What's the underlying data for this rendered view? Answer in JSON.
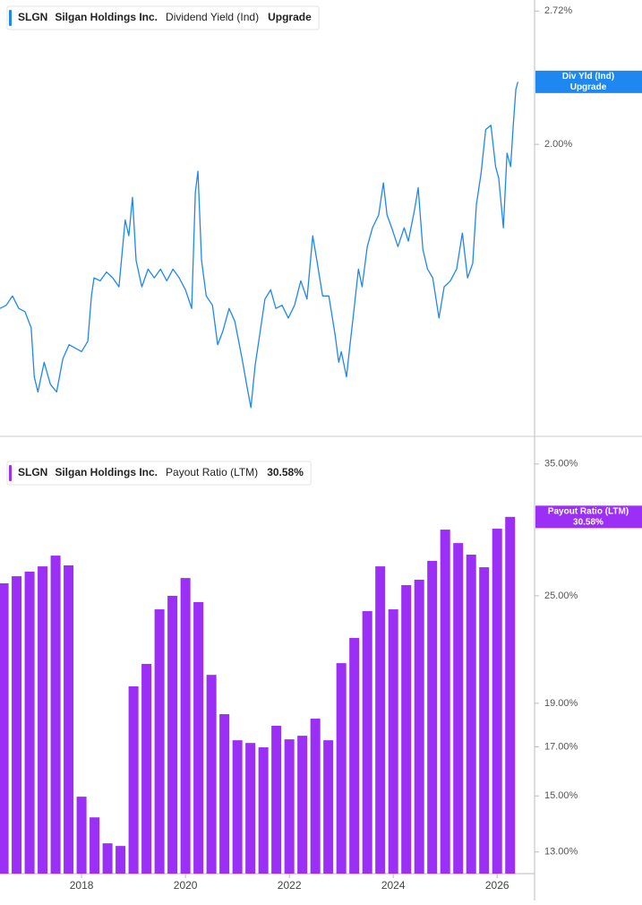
{
  "chart_data": [
    {
      "type": "line",
      "scale": "log",
      "ticker": "SLGN",
      "company": "Silgan Holdings Inc.",
      "x": [
        2016.43,
        2016.55,
        2016.67,
        2016.79,
        2016.91,
        2017.03,
        2017.09,
        2017.16,
        2017.28,
        2017.4,
        2017.52,
        2017.64,
        2017.76,
        2017.88,
        2018.0,
        2018.12,
        2018.19,
        2018.24,
        2018.36,
        2018.48,
        2018.6,
        2018.72,
        2018.84,
        2018.91,
        2018.98,
        2019.05,
        2019.16,
        2019.28,
        2019.4,
        2019.52,
        2019.64,
        2019.76,
        2019.88,
        2020.0,
        2020.12,
        2020.19,
        2020.24,
        2020.31,
        2020.4,
        2020.52,
        2020.62,
        2020.72,
        2020.84,
        2020.95,
        2021.09,
        2021.19,
        2021.26,
        2021.34,
        2021.43,
        2021.53,
        2021.64,
        2021.74,
        2021.86,
        2021.98,
        2022.1,
        2022.22,
        2022.34,
        2022.45,
        2022.53,
        2022.64,
        2022.76,
        2022.88,
        2022.95,
        2023.0,
        2023.1,
        2023.16,
        2023.24,
        2023.33,
        2023.4,
        2023.5,
        2023.6,
        2023.72,
        2023.81,
        2023.88,
        2023.97,
        2024.09,
        2024.21,
        2024.29,
        2024.41,
        2024.48,
        2024.57,
        2024.66,
        2024.76,
        2024.88,
        2024.98,
        2025.1,
        2025.22,
        2025.33,
        2025.43,
        2025.53,
        2025.6,
        2025.69,
        2025.78,
        2025.88,
        2025.97,
        2026.03,
        2026.12,
        2026.19,
        2026.26,
        2026.31,
        2026.36,
        2026.4
      ],
      "xlim": [
        2016.43,
        2026.72
      ],
      "ylim": [
        1.02,
        2.79
      ],
      "yticks": [
        {
          "value": 2.72,
          "label": "2.72%"
        },
        {
          "value": 2.0,
          "label": "2.00%"
        }
      ],
      "series": [
        {
          "name": "Dividend Yield (Ind)",
          "short_name": "Div Yld (Ind)",
          "badge": "Upgrade",
          "color": "#1e88f0",
          "values": [
            1.37,
            1.38,
            1.41,
            1.37,
            1.36,
            1.31,
            1.17,
            1.13,
            1.21,
            1.15,
            1.13,
            1.22,
            1.26,
            1.25,
            1.24,
            1.27,
            1.41,
            1.47,
            1.46,
            1.49,
            1.47,
            1.44,
            1.68,
            1.62,
            1.77,
            1.53,
            1.44,
            1.5,
            1.47,
            1.5,
            1.46,
            1.5,
            1.47,
            1.43,
            1.37,
            1.79,
            1.88,
            1.53,
            1.41,
            1.38,
            1.26,
            1.3,
            1.37,
            1.33,
            1.22,
            1.14,
            1.09,
            1.2,
            1.29,
            1.4,
            1.43,
            1.37,
            1.38,
            1.34,
            1.38,
            1.46,
            1.4,
            1.62,
            1.53,
            1.41,
            1.41,
            1.29,
            1.21,
            1.24,
            1.17,
            1.25,
            1.36,
            1.5,
            1.44,
            1.58,
            1.65,
            1.7,
            1.83,
            1.7,
            1.65,
            1.58,
            1.65,
            1.6,
            1.72,
            1.81,
            1.57,
            1.5,
            1.47,
            1.34,
            1.44,
            1.46,
            1.5,
            1.63,
            1.47,
            1.52,
            1.74,
            1.87,
            2.07,
            2.09,
            1.9,
            1.85,
            1.65,
            1.96,
            1.9,
            2.09,
            2.27,
            2.31
          ]
        }
      ]
    },
    {
      "type": "bar",
      "scale": "log",
      "ticker": "SLGN",
      "company": "Silgan Holdings Inc.",
      "x": [
        2016.5,
        2016.75,
        2017.0,
        2017.25,
        2017.5,
        2017.75,
        2018.0,
        2018.25,
        2018.5,
        2018.75,
        2019.0,
        2019.25,
        2019.5,
        2019.75,
        2020.0,
        2020.25,
        2020.5,
        2020.75,
        2021.0,
        2021.25,
        2021.5,
        2021.75,
        2022.0,
        2022.25,
        2022.5,
        2022.75,
        2023.0,
        2023.25,
        2023.5,
        2023.75,
        2024.0,
        2024.25,
        2024.5,
        2024.75,
        2025.0,
        2025.25,
        2025.5,
        2025.75,
        2026.0,
        2026.25
      ],
      "xlim": [
        2016.43,
        2026.72
      ],
      "xticks": [
        2018,
        2020,
        2022,
        2024,
        2026
      ],
      "ylim": [
        12.3,
        37.3
      ],
      "yticks": [
        {
          "value": 35,
          "label": "35.00%"
        },
        {
          "value": 25,
          "label": "25.00%"
        },
        {
          "value": 19,
          "label": "19.00%"
        },
        {
          "value": 17,
          "label": "17.00%"
        },
        {
          "value": 15,
          "label": "15.00%"
        },
        {
          "value": 13,
          "label": "13.00%"
        }
      ],
      "series": [
        {
          "name": "Payout Ratio (LTM)",
          "badge": "30.58%",
          "color": "#9b2ff5",
          "values": [
            25.81,
            26.28,
            26.59,
            26.95,
            27.7,
            27.02,
            14.97,
            14.2,
            13.29,
            13.2,
            19.84,
            21.01,
            24.15,
            25.0,
            26.16,
            24.6,
            20.43,
            18.48,
            17.29,
            17.17,
            16.98,
            17.94,
            17.33,
            17.49,
            18.27,
            17.29,
            21.05,
            22.45,
            24.04,
            26.95,
            24.15,
            25.69,
            26.05,
            27.33,
            29.6,
            28.6,
            27.77,
            26.89,
            29.67,
            30.58
          ]
        }
      ]
    }
  ]
}
